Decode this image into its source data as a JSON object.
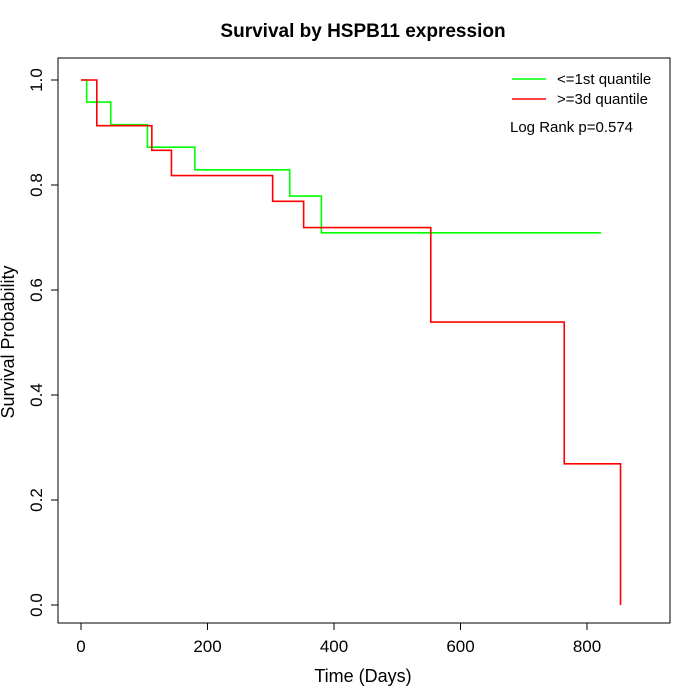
{
  "chart_data": {
    "type": "line",
    "title": "Survival by HSPB11 expression",
    "xlabel": "Time (Days)",
    "ylabel": "Survival Probability",
    "xlim": [
      0,
      855
    ],
    "ylim": [
      0,
      1
    ],
    "x_ticks": [
      0,
      200,
      400,
      600,
      800
    ],
    "x_tick_labels": [
      "0",
      "200",
      "400",
      "600",
      "800"
    ],
    "y_ticks": [
      0,
      0.2,
      0.4,
      0.6,
      0.8,
      1.0
    ],
    "y_tick_labels": [
      "0.0",
      "0.2",
      "0.4",
      "0.6",
      "0.8",
      "1.0"
    ],
    "grid": false,
    "legend_position": "top-right",
    "annotation": "Log Rank p=0.574",
    "series": [
      {
        "name": "<=1st quantile",
        "color": "#00ff00",
        "step": true,
        "x": [
          0,
          9,
          47,
          105,
          180,
          330,
          380,
          822
        ],
        "y": [
          1.0,
          0.958,
          0.915,
          0.872,
          0.829,
          0.779,
          0.709,
          0.709
        ]
      },
      {
        "name": ">=3d quantile",
        "color": "#ff0000",
        "step": true,
        "x": [
          0,
          25,
          112,
          143,
          303,
          352,
          553,
          764,
          853
        ],
        "y": [
          1.0,
          0.913,
          0.866,
          0.818,
          0.769,
          0.719,
          0.539,
          0.269,
          0.0
        ]
      }
    ]
  }
}
